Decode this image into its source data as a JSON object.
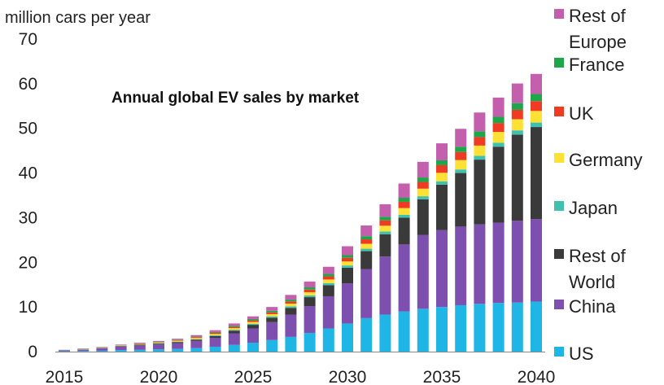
{
  "chart_data": {
    "type": "bar",
    "stacked": true,
    "title": "Annual global EV sales by market",
    "units_label": "million cars per year",
    "xlabel": "",
    "ylabel": "",
    "ylim": [
      0,
      70
    ],
    "yticks": [
      "0",
      "10",
      "20",
      "30",
      "40",
      "50",
      "60",
      "70"
    ],
    "categories": [
      2015,
      2016,
      2017,
      2018,
      2019,
      2020,
      2021,
      2022,
      2023,
      2024,
      2025,
      2026,
      2027,
      2028,
      2029,
      2030,
      2031,
      2032,
      2033,
      2034,
      2035,
      2036,
      2037,
      2038,
      2039,
      2040
    ],
    "xtick_labels": [
      "2015",
      "2020",
      "2025",
      "2030",
      "2035",
      "2040"
    ],
    "grid": false,
    "legend_position": "right",
    "series": [
      {
        "name": "US",
        "color": "#1fb6e6",
        "values": [
          0.1,
          0.15,
          0.2,
          0.35,
          0.4,
          0.5,
          0.6,
          0.8,
          1.1,
          1.5,
          2.0,
          2.6,
          3.3,
          4.2,
          5.2,
          6.3,
          7.5,
          8.3,
          9.0,
          9.6,
          10.0,
          10.4,
          10.7,
          10.9,
          11.0,
          11.2
        ]
      },
      {
        "name": "China",
        "color": "#7d4fae",
        "values": [
          0.2,
          0.3,
          0.55,
          0.8,
          1.0,
          1.1,
          1.3,
          1.6,
          2.0,
          2.6,
          3.2,
          4.0,
          5.0,
          6.0,
          7.2,
          9.0,
          11.0,
          13.0,
          15.0,
          16.5,
          17.2,
          17.6,
          17.8,
          18.0,
          18.3,
          18.5
        ]
      },
      {
        "name": "Rest of World",
        "color": "#3a3a3a",
        "values": [
          0.0,
          0.0,
          0.05,
          0.1,
          0.15,
          0.2,
          0.25,
          0.3,
          0.4,
          0.6,
          0.8,
          1.0,
          1.5,
          2.0,
          2.5,
          3.5,
          4.0,
          5.0,
          6.0,
          8.0,
          10.2,
          12.0,
          14.5,
          17.0,
          19.3,
          20.6
        ]
      },
      {
        "name": "Japan",
        "color": "#3fc1b0",
        "values": [
          0.05,
          0.05,
          0.05,
          0.05,
          0.05,
          0.1,
          0.1,
          0.1,
          0.15,
          0.2,
          0.25,
          0.3,
          0.35,
          0.4,
          0.45,
          0.5,
          0.55,
          0.6,
          0.65,
          0.7,
          0.75,
          0.8,
          0.85,
          0.9,
          0.95,
          1.0
        ]
      },
      {
        "name": "Germany",
        "color": "#ffe135",
        "values": [
          0.0,
          0.05,
          0.05,
          0.1,
          0.1,
          0.15,
          0.2,
          0.25,
          0.3,
          0.35,
          0.4,
          0.5,
          0.6,
          0.7,
          0.8,
          0.9,
          1.1,
          1.3,
          1.5,
          1.7,
          1.9,
          2.1,
          2.3,
          2.4,
          2.5,
          2.6
        ]
      },
      {
        "name": "UK",
        "color": "#ef3b24",
        "values": [
          0.05,
          0.05,
          0.05,
          0.05,
          0.1,
          0.1,
          0.15,
          0.2,
          0.25,
          0.3,
          0.35,
          0.4,
          0.5,
          0.6,
          0.7,
          0.8,
          1.0,
          1.2,
          1.4,
          1.5,
          1.7,
          1.8,
          1.9,
          2.0,
          2.1,
          2.2
        ]
      },
      {
        "name": "France",
        "color": "#1ea64a",
        "values": [
          0.0,
          0.05,
          0.05,
          0.05,
          0.05,
          0.1,
          0.1,
          0.15,
          0.2,
          0.25,
          0.3,
          0.35,
          0.4,
          0.5,
          0.55,
          0.6,
          0.7,
          0.8,
          0.9,
          1.0,
          1.1,
          1.2,
          1.3,
          1.4,
          1.5,
          1.6
        ]
      },
      {
        "name": "Rest of Europe",
        "color": "#c45fad",
        "values": [
          0.0,
          0.05,
          0.05,
          0.1,
          0.15,
          0.15,
          0.2,
          0.3,
          0.4,
          0.5,
          0.6,
          0.85,
          1.05,
          1.3,
          1.6,
          2.0,
          2.4,
          2.8,
          3.2,
          3.5,
          3.8,
          4.0,
          4.2,
          4.3,
          4.4,
          4.5
        ]
      }
    ],
    "legend": [
      {
        "series": "Rest of Europe",
        "lines": [
          "Rest of",
          "Europe"
        ]
      },
      {
        "series": "France",
        "lines": [
          "France"
        ]
      },
      {
        "series": "UK",
        "lines": [
          "UK"
        ]
      },
      {
        "series": "Germany",
        "lines": [
          "Germany"
        ]
      },
      {
        "series": "Japan",
        "lines": [
          "Japan"
        ]
      },
      {
        "series": "Rest of World",
        "lines": [
          "Rest of",
          "World"
        ]
      },
      {
        "series": "China",
        "lines": [
          "China"
        ]
      },
      {
        "series": "US",
        "lines": [
          "US"
        ]
      }
    ]
  }
}
